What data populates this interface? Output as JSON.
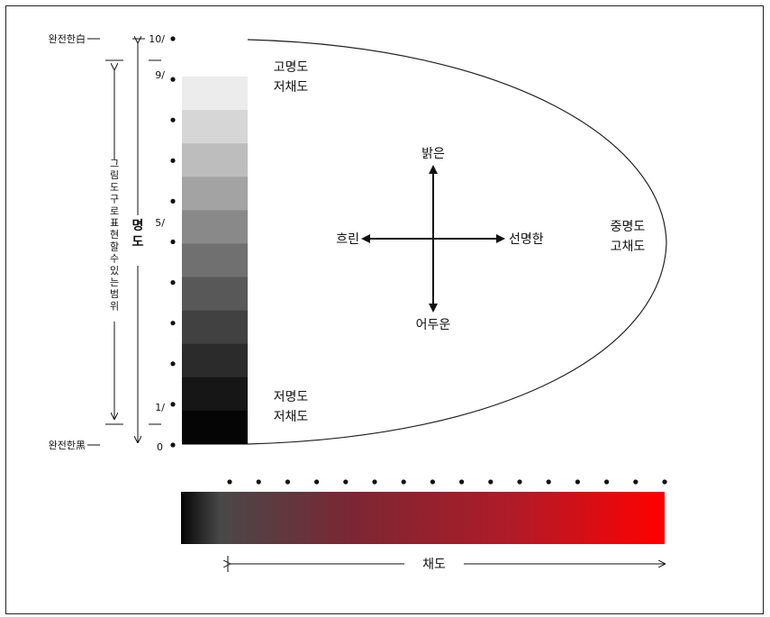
{
  "value_axis": {
    "top_label": "완전한白",
    "bottom_label": "완전한黑",
    "title": "명도",
    "range_label": "그림도구로표현할수있는범위",
    "ticks": {
      "top": "10/",
      "upper": "9/",
      "middle": "5/",
      "lower": "1/",
      "bottom": "0"
    },
    "steps": 11
  },
  "gray_scale": {
    "colors": [
      "#ececec",
      "#d6d6d6",
      "#bdbdbd",
      "#a3a3a3",
      "#898989",
      "#707070",
      "#585858",
      "#414141",
      "#2b2b2b",
      "#161616",
      "#050505"
    ]
  },
  "regions": {
    "high_value_low_chroma": [
      "고명도",
      "저채도"
    ],
    "low_value_low_chroma": [
      "저명도",
      "저채도"
    ],
    "mid_value_high_chroma": [
      "중명도",
      "고채도"
    ]
  },
  "compass": {
    "up": "밝은",
    "down": "어두운",
    "left": "흐린",
    "right": "선명한"
  },
  "chroma_axis": {
    "label": "채도",
    "dots": 16,
    "gradient": [
      "#050505",
      "#484848",
      "#7a2733",
      "#b31a27",
      "#ff0000"
    ]
  }
}
